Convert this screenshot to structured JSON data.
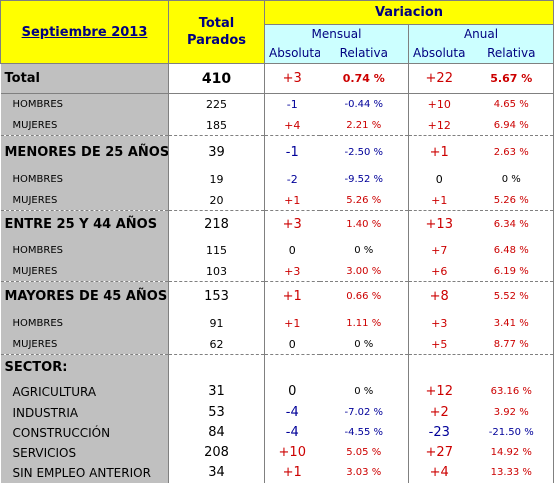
{
  "header": {
    "period": "Septiembre 2013",
    "total_label": "Total\nParados",
    "variacion": "Variacion",
    "mensual": "Mensual",
    "anual": "Anual",
    "absoluta": "Absoluta",
    "relativa": "Relativa"
  },
  "rows": [
    {
      "label": "Total",
      "total": "410",
      "m_abs": "+3",
      "m_rel": "0.74 %",
      "a_abs": "+22",
      "a_rel": "5.67 %"
    },
    {
      "label": "HOMBRES",
      "total": "225",
      "m_abs": "-1",
      "m_rel": "-0.44 %",
      "a_abs": "+10",
      "a_rel": "4.65 %"
    },
    {
      "label": "MUJERES",
      "total": "185",
      "m_abs": "+4",
      "m_rel": "2.21 %",
      "a_abs": "+12",
      "a_rel": "6.94 %"
    },
    {
      "label": "MENORES DE 25 AÑOS:",
      "total": "39",
      "m_abs": "-1",
      "m_rel": "-2.50 %",
      "a_abs": "+1",
      "a_rel": "2.63 %"
    },
    {
      "label": "HOMBRES",
      "total": "19",
      "m_abs": "-2",
      "m_rel": "-9.52 %",
      "a_abs": "0",
      "a_rel": "0 %"
    },
    {
      "label": "MUJERES",
      "total": "20",
      "m_abs": "+1",
      "m_rel": "5.26 %",
      "a_abs": "+1",
      "a_rel": "5.26 %"
    },
    {
      "label": "ENTRE 25 Y 44 AÑOS",
      "total": "218",
      "m_abs": "+3",
      "m_rel": "1.40 %",
      "a_abs": "+13",
      "a_rel": "6.34 %"
    },
    {
      "label": "HOMBRES",
      "total": "115",
      "m_abs": "0",
      "m_rel": "0 %",
      "a_abs": "+7",
      "a_rel": "6.48 %"
    },
    {
      "label": "MUJERES",
      "total": "103",
      "m_abs": "+3",
      "m_rel": "3.00 %",
      "a_abs": "+6",
      "a_rel": "6.19 %"
    },
    {
      "label": "MAYORES DE 45 AÑOS",
      "total": "153",
      "m_abs": "+1",
      "m_rel": "0.66 %",
      "a_abs": "+8",
      "a_rel": "5.52 %"
    },
    {
      "label": "HOMBRES",
      "total": "91",
      "m_abs": "+1",
      "m_rel": "1.11 %",
      "a_abs": "+3",
      "a_rel": "3.41 %"
    },
    {
      "label": "MUJERES",
      "total": "62",
      "m_abs": "0",
      "m_rel": "0 %",
      "a_abs": "+5",
      "a_rel": "8.77 %"
    },
    {
      "label": "SECTOR:",
      "total": "",
      "m_abs": "",
      "m_rel": "",
      "a_abs": "",
      "a_rel": ""
    },
    {
      "label": "AGRICULTURA",
      "total": "31",
      "m_abs": "0",
      "m_rel": "0 %",
      "a_abs": "+12",
      "a_rel": "63.16 %"
    },
    {
      "label": "INDUSTRIA",
      "total": "53",
      "m_abs": "-4",
      "m_rel": "-7.02 %",
      "a_abs": "+2",
      "a_rel": "3.92 %"
    },
    {
      "label": "CONSTRUCCIÓN",
      "total": "84",
      "m_abs": "-4",
      "m_rel": "-4.55 %",
      "a_abs": "-23",
      "a_rel": "-21.50 %"
    },
    {
      "label": "SERVICIOS",
      "total": "208",
      "m_abs": "+10",
      "m_rel": "5.05 %",
      "a_abs": "+27",
      "a_rel": "14.92 %"
    },
    {
      "label": "SIN EMPLEO ANTERIOR",
      "total": "34",
      "m_abs": "+1",
      "m_rel": "3.03 %",
      "a_abs": "+4",
      "a_rel": "13.33 %"
    }
  ],
  "colors": {
    "header_yellow": "#ffff00",
    "header_cyan": "#ccffff",
    "label_gray": "#c0c0c0",
    "positive": "#cc0000",
    "negative": "#000099"
  }
}
